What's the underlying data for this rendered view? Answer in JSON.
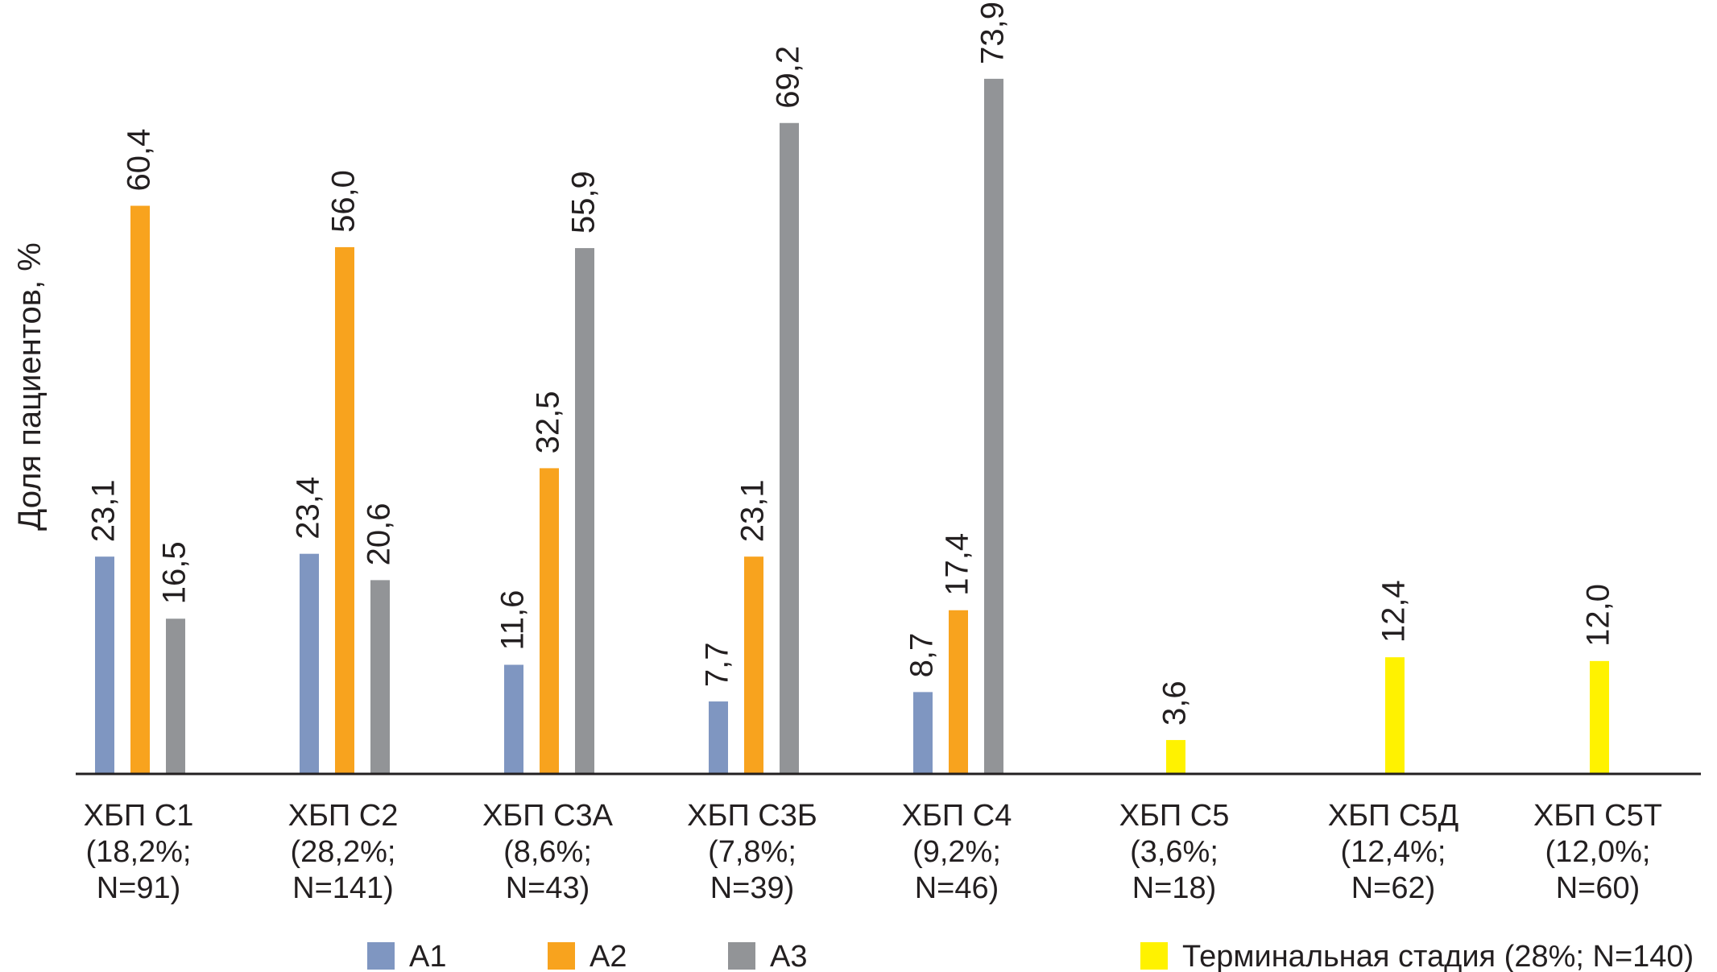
{
  "chart_data": {
    "type": "bar",
    "title": "",
    "xlabel": "",
    "ylabel": "Доля пациентов, %",
    "ylim": [
      0,
      85
    ],
    "grid": false,
    "legend_position": "bottom",
    "categories": [
      {
        "name": "ХБП С1",
        "line2": "(18,2%;",
        "line3": "N=91)"
      },
      {
        "name": "ХБП С2",
        "line2": "(28,2%;",
        "line3": "N=141)"
      },
      {
        "name": "ХБП С3А",
        "line2": "(8,6%;",
        "line3": "N=43)"
      },
      {
        "name": "ХБП С3Б",
        "line2": "(7,8%;",
        "line3": "N=39)"
      },
      {
        "name": "ХБП С4",
        "line2": "(9,2%;",
        "line3": "N=46)"
      },
      {
        "name": "ХБП С5",
        "line2": "(3,6%;",
        "line3": "N=18)"
      },
      {
        "name": "ХБП С5Д",
        "line2": "(12,4%;",
        "line3": "N=62)"
      },
      {
        "name": "ХБП С5Т",
        "line2": "(12,0%;",
        "line3": "N=60)"
      }
    ],
    "series": [
      {
        "name": "A1",
        "color": "#7f96c1",
        "values": [
          23.1,
          23.4,
          11.6,
          7.7,
          8.7,
          null,
          null,
          null
        ],
        "labels": [
          "23,1",
          "23,4",
          "11,6",
          "7,7",
          "8,7",
          null,
          null,
          null
        ]
      },
      {
        "name": "A2",
        "color": "#f8a31e",
        "values": [
          60.4,
          56.0,
          32.5,
          23.1,
          17.4,
          null,
          null,
          null
        ],
        "labels": [
          "60,4",
          "56,0",
          "32,5",
          "23,1",
          "17,4",
          null,
          null,
          null
        ]
      },
      {
        "name": "A3",
        "color": "#929497",
        "values": [
          16.5,
          20.6,
          55.9,
          69.2,
          73.9,
          null,
          null,
          null
        ],
        "labels": [
          "16,5",
          "20,6",
          "55,9",
          "69,2",
          "73,9",
          null,
          null,
          null
        ]
      },
      {
        "name": "Терминальная стадия (28%; N=140)",
        "color": "#fff200",
        "values": [
          null,
          null,
          null,
          null,
          null,
          3.6,
          12.4,
          12.0
        ],
        "labels": [
          null,
          null,
          null,
          null,
          null,
          "3,6",
          "12,4",
          "12,0"
        ]
      }
    ]
  }
}
